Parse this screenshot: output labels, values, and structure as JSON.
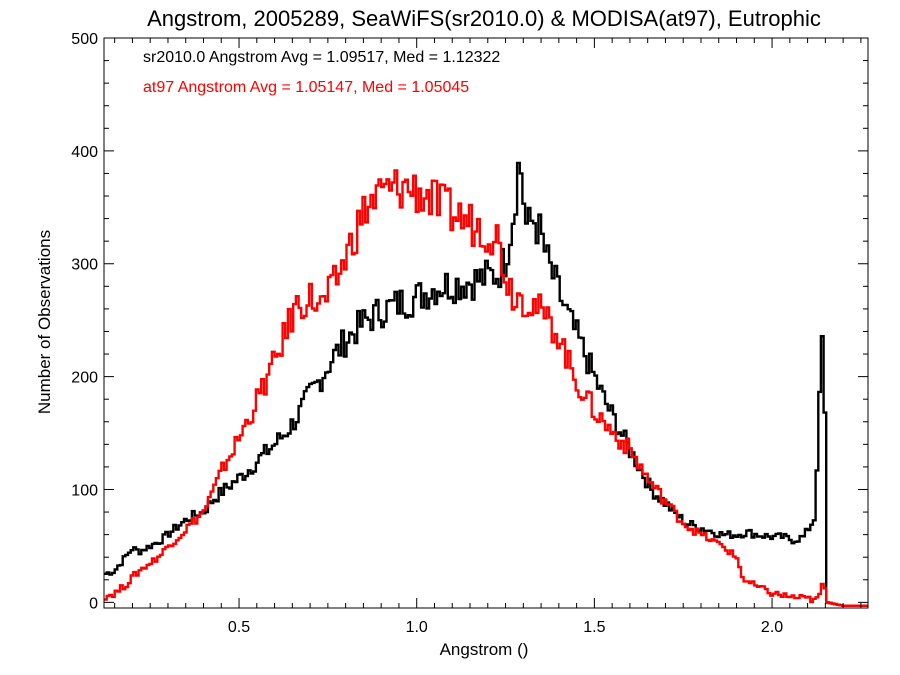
{
  "chart_data": {
    "type": "line",
    "title": "Angstrom, 2005289, SeaWiFS(sr2010.0) & MODISA(at97), Eutrophic",
    "xlabel": "Angstrom ()",
    "ylabel": "Number of Observations",
    "xlim": [
      0.12,
      2.27
    ],
    "ylim": [
      -5,
      500
    ],
    "x_ticks": [
      0.5,
      1.0,
      1.5,
      2.0
    ],
    "x_tick_labels": [
      "0.5",
      "1.0",
      "1.5",
      "2.0"
    ],
    "y_ticks": [
      0,
      100,
      200,
      300,
      400,
      500
    ],
    "y_tick_labels": [
      "0",
      "100",
      "200",
      "300",
      "400",
      "500"
    ],
    "grid": false,
    "style": "step",
    "annotations": [
      {
        "text": "sr2010.0 Angstrom Avg = 1.09517, Med = 1.12322",
        "color": "#000000"
      },
      {
        "text": "at97 Angstrom Avg = 1.05147, Med = 1.05045",
        "color": "#ff0000"
      }
    ],
    "series": [
      {
        "color": "#000000",
        "points": [
          [
            0.12,
            25
          ],
          [
            0.15,
            28
          ],
          [
            0.18,
            40
          ],
          [
            0.2,
            48
          ],
          [
            0.22,
            45
          ],
          [
            0.25,
            50
          ],
          [
            0.28,
            55
          ],
          [
            0.3,
            60
          ],
          [
            0.33,
            68
          ],
          [
            0.36,
            75
          ],
          [
            0.4,
            80
          ],
          [
            0.43,
            92
          ],
          [
            0.46,
            100
          ],
          [
            0.5,
            110
          ],
          [
            0.53,
            118
          ],
          [
            0.56,
            128
          ],
          [
            0.6,
            140
          ],
          [
            0.63,
            150
          ],
          [
            0.66,
            162
          ],
          [
            0.7,
            185
          ],
          [
            0.73,
            198
          ],
          [
            0.76,
            215
          ],
          [
            0.8,
            232
          ],
          [
            0.83,
            242
          ],
          [
            0.86,
            250
          ],
          [
            0.9,
            258
          ],
          [
            0.93,
            262
          ],
          [
            0.96,
            266
          ],
          [
            1.0,
            270
          ],
          [
            1.03,
            275
          ],
          [
            1.06,
            280
          ],
          [
            1.1,
            282
          ],
          [
            1.13,
            283
          ],
          [
            1.16,
            285
          ],
          [
            1.2,
            288
          ],
          [
            1.23,
            292
          ],
          [
            1.25,
            305
          ],
          [
            1.27,
            340
          ],
          [
            1.29,
            395
          ],
          [
            1.31,
            330
          ],
          [
            1.33,
            340
          ],
          [
            1.35,
            325
          ],
          [
            1.37,
            300
          ],
          [
            1.4,
            275
          ],
          [
            1.43,
            250
          ],
          [
            1.46,
            230
          ],
          [
            1.5,
            200
          ],
          [
            1.53,
            178
          ],
          [
            1.56,
            160
          ],
          [
            1.6,
            135
          ],
          [
            1.63,
            118
          ],
          [
            1.66,
            100
          ],
          [
            1.7,
            88
          ],
          [
            1.73,
            78
          ],
          [
            1.76,
            70
          ],
          [
            1.8,
            66
          ],
          [
            1.83,
            63
          ],
          [
            1.86,
            60
          ],
          [
            1.9,
            60
          ],
          [
            1.93,
            62
          ],
          [
            1.96,
            60
          ],
          [
            2.0,
            58
          ],
          [
            2.03,
            58
          ],
          [
            2.06,
            55
          ],
          [
            2.09,
            58
          ],
          [
            2.12,
            75
          ],
          [
            2.13,
            150
          ],
          [
            2.145,
            260
          ],
          [
            2.155,
            0
          ],
          [
            2.2,
            -3
          ],
          [
            2.27,
            -3
          ]
        ]
      },
      {
        "color": "#ff0000",
        "points": [
          [
            0.12,
            5
          ],
          [
            0.15,
            8
          ],
          [
            0.18,
            15
          ],
          [
            0.2,
            22
          ],
          [
            0.22,
            28
          ],
          [
            0.25,
            35
          ],
          [
            0.28,
            42
          ],
          [
            0.3,
            50
          ],
          [
            0.33,
            58
          ],
          [
            0.36,
            68
          ],
          [
            0.4,
            80
          ],
          [
            0.43,
            100
          ],
          [
            0.46,
            122
          ],
          [
            0.5,
            145
          ],
          [
            0.53,
            165
          ],
          [
            0.56,
            185
          ],
          [
            0.6,
            212
          ],
          [
            0.63,
            238
          ],
          [
            0.66,
            262
          ],
          [
            0.7,
            270
          ],
          [
            0.73,
            262
          ],
          [
            0.76,
            275
          ],
          [
            0.8,
            305
          ],
          [
            0.83,
            330
          ],
          [
            0.86,
            350
          ],
          [
            0.9,
            362
          ],
          [
            0.93,
            365
          ],
          [
            0.96,
            368
          ],
          [
            1.0,
            365
          ],
          [
            1.03,
            360
          ],
          [
            1.06,
            352
          ],
          [
            1.1,
            345
          ],
          [
            1.13,
            340
          ],
          [
            1.16,
            335
          ],
          [
            1.2,
            330
          ],
          [
            1.23,
            322
          ],
          [
            1.25,
            290
          ],
          [
            1.27,
            275
          ],
          [
            1.3,
            270
          ],
          [
            1.33,
            265
          ],
          [
            1.36,
            252
          ],
          [
            1.4,
            238
          ],
          [
            1.43,
            210
          ],
          [
            1.46,
            190
          ],
          [
            1.5,
            170
          ],
          [
            1.53,
            158
          ],
          [
            1.56,
            148
          ],
          [
            1.6,
            135
          ],
          [
            1.63,
            120
          ],
          [
            1.66,
            105
          ],
          [
            1.7,
            90
          ],
          [
            1.73,
            78
          ],
          [
            1.76,
            68
          ],
          [
            1.8,
            60
          ],
          [
            1.83,
            55
          ],
          [
            1.86,
            50
          ],
          [
            1.9,
            40
          ],
          [
            1.92,
            20
          ],
          [
            1.95,
            15
          ],
          [
            2.0,
            8
          ],
          [
            2.05,
            5
          ],
          [
            2.1,
            3
          ],
          [
            2.13,
            2
          ],
          [
            2.145,
            20
          ],
          [
            2.155,
            0
          ],
          [
            2.2,
            -3
          ],
          [
            2.27,
            -3
          ]
        ]
      }
    ]
  }
}
